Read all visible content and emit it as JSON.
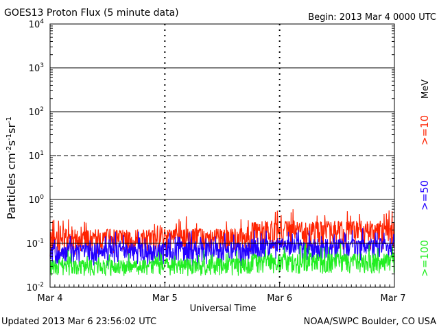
{
  "chart_data": {
    "type": "line",
    "title": "GOES13 Proton Flux (5 minute data)",
    "begin_label": "Begin: 2013 Mar  4 0000 UTC",
    "xlabel": "Universal Time",
    "ylabel": {
      "base": "Particles cm",
      "sup1": "-2",
      "mid1": "s",
      "sup2": "-1",
      "mid2": "sr",
      "sup3": "-1"
    },
    "y_scale": "log",
    "ylim": [
      0.01,
      10000
    ],
    "y_ticks": [
      {
        "value": 10000,
        "base": "10",
        "exp": "4"
      },
      {
        "value": 1000,
        "base": "10",
        "exp": "3"
      },
      {
        "value": 100,
        "base": "10",
        "exp": "2"
      },
      {
        "value": 10,
        "base": "10",
        "exp": "1"
      },
      {
        "value": 1,
        "base": "10",
        "exp": "0"
      },
      {
        "value": 0.1,
        "base": "10",
        "exp": "-1"
      },
      {
        "value": 0.01,
        "base": "10",
        "exp": "-2"
      }
    ],
    "x_range_days": [
      0,
      3
    ],
    "x_ticks": [
      {
        "day": 0,
        "label": "Mar 4"
      },
      {
        "day": 1,
        "label": "Mar 5"
      },
      {
        "day": 2,
        "label": "Mar 6"
      },
      {
        "day": 3,
        "label": "Mar 7"
      }
    ],
    "horizontal_lines": [
      {
        "value": 1000,
        "style": "solid"
      },
      {
        "value": 100,
        "style": "solid"
      },
      {
        "value": 10,
        "style": "dashed"
      },
      {
        "value": 1,
        "style": "solid"
      },
      {
        "value": 0.1,
        "style": "solid"
      }
    ],
    "day_dividers": "dashed vertical lines at each day boundary",
    "series": [
      {
        "name": ">=10",
        "color": "#ff2200",
        "segments": [
          {
            "from_day": 0,
            "to_day": 1,
            "base": 0.13,
            "spread": 0.08
          },
          {
            "from_day": 1,
            "to_day": 1.75,
            "base": 0.14,
            "spread": 0.08
          },
          {
            "from_day": 1.75,
            "to_day": 3,
            "base": 0.2,
            "spread": 0.13
          }
        ]
      },
      {
        "name": ">=50",
        "color": "#2200ff",
        "segments": [
          {
            "from_day": 0,
            "to_day": 1,
            "base": 0.065,
            "spread": 0.035
          },
          {
            "from_day": 1,
            "to_day": 1.75,
            "base": 0.07,
            "spread": 0.04
          },
          {
            "from_day": 1.75,
            "to_day": 3,
            "base": 0.085,
            "spread": 0.045
          }
        ]
      },
      {
        "name": ">=100",
        "color": "#22ee22",
        "segments": [
          {
            "from_day": 0,
            "to_day": 1,
            "base": 0.03,
            "spread": 0.012
          },
          {
            "from_day": 1,
            "to_day": 1.75,
            "base": 0.032,
            "spread": 0.014
          },
          {
            "from_day": 1.75,
            "to_day": 3,
            "base": 0.04,
            "spread": 0.02
          }
        ]
      }
    ],
    "legend_unit": "MeV",
    "legend_placement": "right side, rotated"
  },
  "footer": {
    "updated": "Updated 2013 Mar  6 23:56:02 UTC",
    "source": "NOAA/SWPC Boulder, CO USA"
  }
}
